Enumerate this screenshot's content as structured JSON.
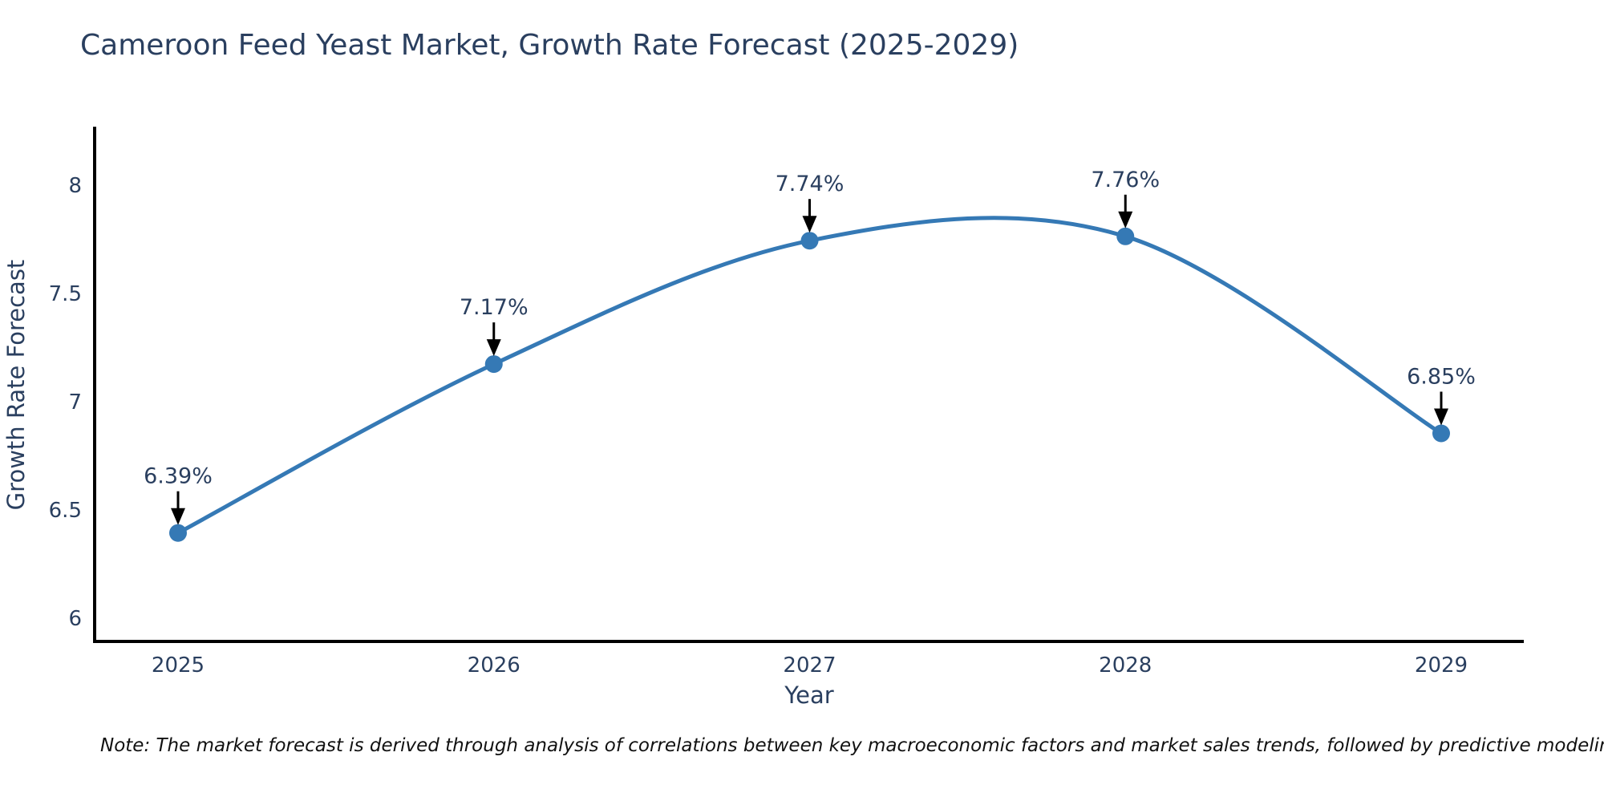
{
  "page": {
    "background": "#ffffff"
  },
  "chart": {
    "title": "Cameroon Feed Yeast Market, Growth Rate Forecast (2025-2029)",
    "xlabel": "Year",
    "ylabel": "Growth Rate Forecast",
    "colors": {
      "line": "#3579b5",
      "marker": "#3579b5",
      "chart_text": "#2a3f5f",
      "axis": "#000000",
      "arrow": "#000000",
      "note_text": "#111111",
      "background": "#ffffff"
    }
  },
  "note": {
    "text": "Note: The market forecast is derived through analysis of correlations between key macroeconomic factors and market sales trends, followed by predictive modeling to project future sales"
  },
  "chart_data": {
    "type": "line",
    "line_style": "spline",
    "markers": true,
    "grid": false,
    "legend": false,
    "title": "Cameroon Feed Yeast Market, Growth Rate Forecast (2025-2029)",
    "xlabel": "Year",
    "ylabel": "Growth Rate Forecast",
    "categories": [
      "2025",
      "2026",
      "2027",
      "2028",
      "2029"
    ],
    "values": [
      6.39,
      7.17,
      7.74,
      7.76,
      6.85
    ],
    "point_labels": [
      "6.39%",
      "7.17%",
      "7.74%",
      "7.76%",
      "6.85%"
    ],
    "annotations": "arrow-down-to-point",
    "yticks": [
      6,
      6.5,
      7,
      7.5,
      8
    ],
    "ylim": [
      5.89,
      8.26
    ],
    "value_unit": "percent"
  }
}
